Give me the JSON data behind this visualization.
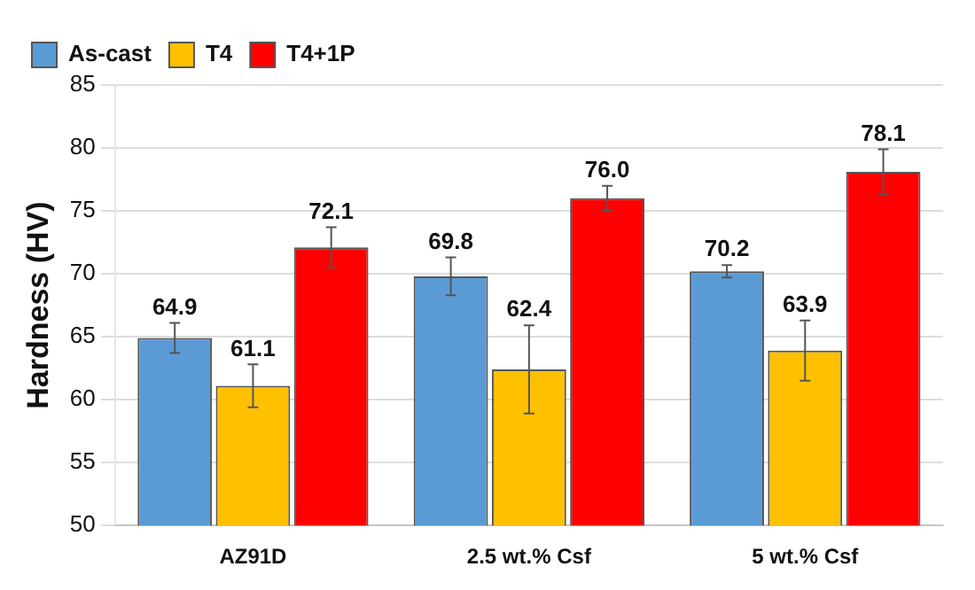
{
  "chart_data": {
    "type": "bar",
    "ylabel": "Hardness (HV)",
    "categories": [
      "AZ91D",
      "2.5 wt.% Csf",
      "5 wt.% Csf"
    ],
    "series": [
      {
        "name": "As-cast",
        "color": "#5b9bd5",
        "values": [
          64.9,
          69.8,
          70.2
        ],
        "errors": [
          1.2,
          1.5,
          0.5
        ],
        "value_labels": [
          "64.9",
          "69.8",
          "70.2"
        ]
      },
      {
        "name": "T4",
        "color": "#ffc000",
        "values": [
          61.1,
          62.4,
          63.9
        ],
        "errors": [
          1.7,
          3.5,
          2.4
        ],
        "value_labels": [
          "61.1",
          "62.4",
          "63.9"
        ]
      },
      {
        "name": "T4+1P",
        "color": "#ff0000",
        "values": [
          72.1,
          76.0,
          78.1
        ],
        "errors": [
          1.6,
          1.0,
          1.8
        ],
        "value_labels": [
          "72.1",
          "76.0",
          "78.1"
        ]
      }
    ],
    "ylim": [
      50,
      85
    ],
    "yticks": [
      50,
      55,
      60,
      65,
      70,
      75,
      80,
      85
    ],
    "grid": "y",
    "legend": "top left"
  }
}
